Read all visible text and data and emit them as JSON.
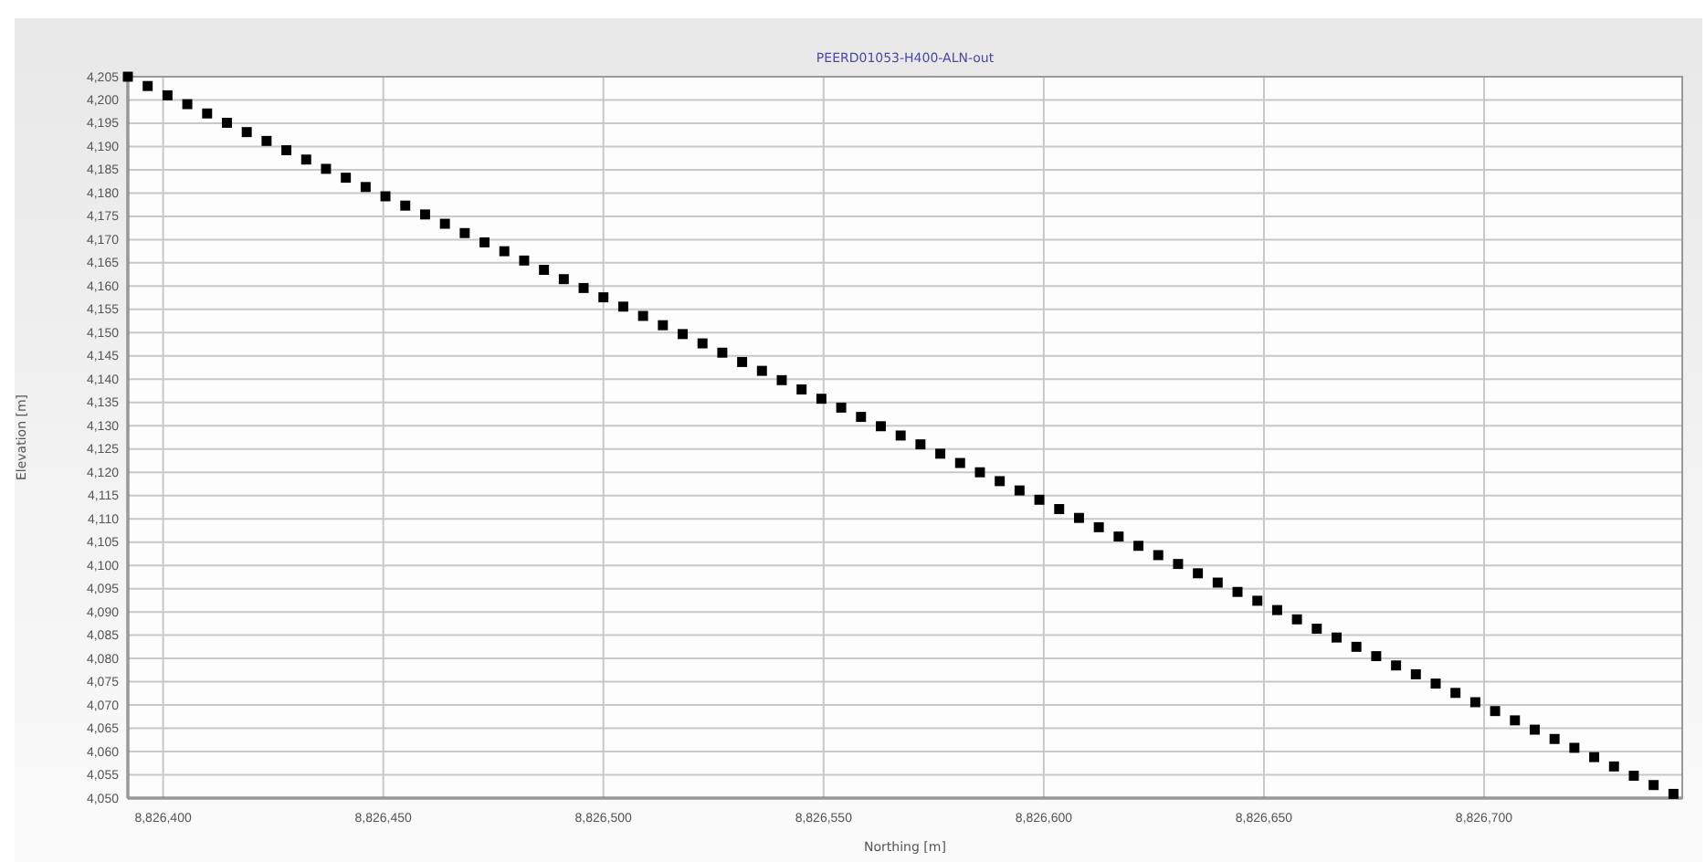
{
  "chart_data": {
    "type": "scatter",
    "title": "PEERD01053-H400-ALN-out",
    "xlabel": "Northing [m]",
    "ylabel": "Elevation [m]",
    "x": [
      8826392,
      8826396.5,
      8826401,
      8826405.5,
      8826410,
      8826414.5,
      8826419,
      8826423.5,
      8826428,
      8826432.5,
      8826437,
      8826441.5,
      8826446,
      8826450.5,
      8826455,
      8826459.5,
      8826464,
      8826468.5,
      8826473,
      8826477.5,
      8826482,
      8826486.5,
      8826491,
      8826495.5,
      8826500,
      8826504.5,
      8826509,
      8826513.5,
      8826518,
      8826522.5,
      8826527,
      8826531.5,
      8826536,
      8826540.5,
      8826545,
      8826549.5,
      8826554,
      8826558.5,
      8826563,
      8826567.5,
      8826572,
      8826576.5,
      8826581,
      8826585.5,
      8826590,
      8826594.5,
      8826599,
      8826603.5,
      8826608,
      8826612.5,
      8826617,
      8826621.5,
      8826626,
      8826630.5,
      8826635,
      8826639.5,
      8826644,
      8826648.5,
      8826653,
      8826657.5,
      8826662,
      8826666.5,
      8826671,
      8826675.5,
      8826680,
      8826684.5,
      8826689,
      8826693.5,
      8826698,
      8826702.5,
      8826707,
      8826711.5,
      8826716,
      8826720.5,
      8826725,
      8826729.5,
      8826734,
      8826738.5,
      8826743
    ],
    "series": [
      {
        "color": "#000000",
        "values": [
          4205.0,
          4203.0,
          4201.0,
          4199.1,
          4197.1,
          4195.1,
          4193.1,
          4191.2,
          4189.2,
          4187.2,
          4185.2,
          4183.3,
          4181.3,
          4179.3,
          4177.3,
          4175.4,
          4173.4,
          4171.4,
          4169.4,
          4167.5,
          4165.5,
          4163.5,
          4161.5,
          4159.6,
          4157.6,
          4155.6,
          4153.6,
          4151.6,
          4149.7,
          4147.7,
          4145.7,
          4143.7,
          4141.8,
          4139.8,
          4137.8,
          4135.8,
          4133.9,
          4131.9,
          4129.9,
          4127.9,
          4126.0,
          4124.0,
          4122.0,
          4120.0,
          4118.1,
          4116.1,
          4114.1,
          4112.1,
          4110.2,
          4108.2,
          4106.2,
          4104.2,
          4102.2,
          4100.3,
          4098.3,
          4096.3,
          4094.3,
          4092.4,
          4090.4,
          4088.4,
          4086.4,
          4084.5,
          4082.5,
          4080.5,
          4078.5,
          4076.6,
          4074.6,
          4072.6,
          4070.6,
          4068.7,
          4066.7,
          4064.7,
          4062.7,
          4060.8,
          4058.8,
          4056.8,
          4054.8,
          4052.8,
          4050.9
        ]
      }
    ],
    "marker": "square",
    "grid": true,
    "xlim": [
      8826392,
      8826745
    ],
    "ylim": [
      4050,
      4205
    ],
    "xticks": [
      {
        "value": 8826400,
        "label": "8,826,400"
      },
      {
        "value": 8826450,
        "label": "8,826,450"
      },
      {
        "value": 8826500,
        "label": "8,826,500"
      },
      {
        "value": 8826550,
        "label": "8,826,550"
      },
      {
        "value": 8826600,
        "label": "8,826,600"
      },
      {
        "value": 8826650,
        "label": "8,826,650"
      },
      {
        "value": 8826700,
        "label": "8,826,700"
      }
    ],
    "yticks": [
      {
        "value": 4050,
        "label": "4,050"
      },
      {
        "value": 4055,
        "label": "4,055"
      },
      {
        "value": 4060,
        "label": "4,060"
      },
      {
        "value": 4065,
        "label": "4,065"
      },
      {
        "value": 4070,
        "label": "4,070"
      },
      {
        "value": 4075,
        "label": "4,075"
      },
      {
        "value": 4080,
        "label": "4,080"
      },
      {
        "value": 4085,
        "label": "4,085"
      },
      {
        "value": 4090,
        "label": "4,090"
      },
      {
        "value": 4095,
        "label": "4,095"
      },
      {
        "value": 4100,
        "label": "4,100"
      },
      {
        "value": 4105,
        "label": "4,105"
      },
      {
        "value": 4110,
        "label": "4,110"
      },
      {
        "value": 4115,
        "label": "4,115"
      },
      {
        "value": 4120,
        "label": "4,120"
      },
      {
        "value": 4125,
        "label": "4,125"
      },
      {
        "value": 4130,
        "label": "4,130"
      },
      {
        "value": 4135,
        "label": "4,135"
      },
      {
        "value": 4140,
        "label": "4,140"
      },
      {
        "value": 4145,
        "label": "4,145"
      },
      {
        "value": 4150,
        "label": "4,150"
      },
      {
        "value": 4155,
        "label": "4,155"
      },
      {
        "value": 4160,
        "label": "4,160"
      },
      {
        "value": 4165,
        "label": "4,165"
      },
      {
        "value": 4170,
        "label": "4,170"
      },
      {
        "value": 4175,
        "label": "4,175"
      },
      {
        "value": 4180,
        "label": "4,180"
      },
      {
        "value": 4185,
        "label": "4,185"
      },
      {
        "value": 4190,
        "label": "4,190"
      },
      {
        "value": 4195,
        "label": "4,195"
      },
      {
        "value": 4200,
        "label": "4,200"
      },
      {
        "value": 4205,
        "label": "4,205"
      }
    ]
  }
}
